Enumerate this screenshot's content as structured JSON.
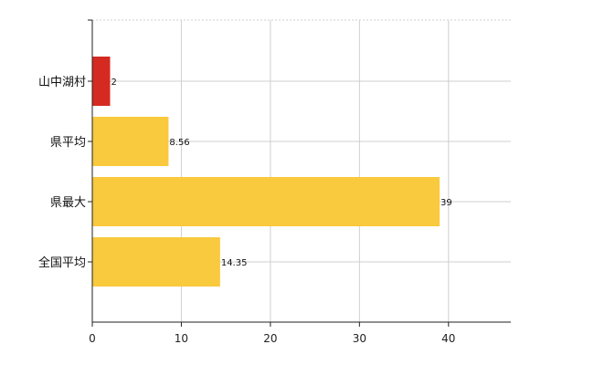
{
  "colors": {
    "highlight": "#d42a22",
    "default_bar": "#f9c93e",
    "grid": "#cfcfcf",
    "axis": "#222222"
  },
  "chart_data": {
    "type": "bar",
    "orientation": "horizontal",
    "title": "",
    "xlabel": "",
    "ylabel": "",
    "xlim": [
      0,
      47
    ],
    "x_ticks": [
      0,
      10,
      20,
      30,
      40
    ],
    "grid": true,
    "legend": "none",
    "categories": [
      "山中湖村",
      "県平均",
      "県最大",
      "全国平均"
    ],
    "values": [
      2,
      8.56,
      39,
      14.35
    ],
    "data_labels": [
      "2",
      "8.56",
      "39",
      "14.35"
    ],
    "bar_colors": [
      "#d42a22",
      "#f9c93e",
      "#f9c93e",
      "#f9c93e"
    ]
  }
}
